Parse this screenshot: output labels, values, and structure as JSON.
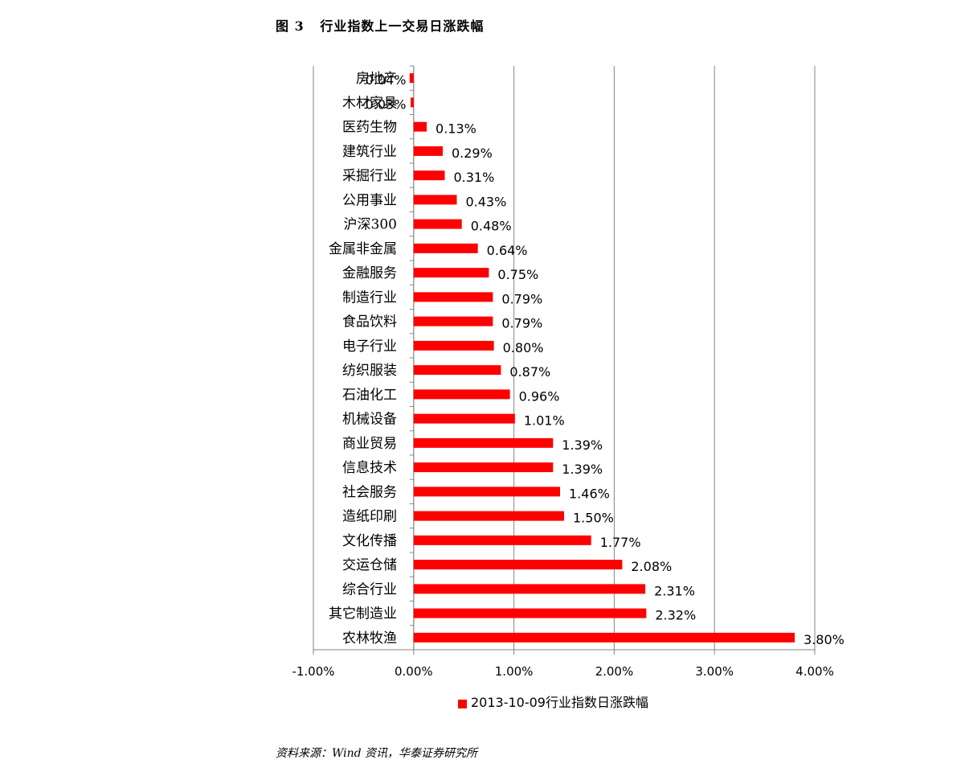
{
  "figure": {
    "title": "图 3   行业指数上一交易日涨跌幅",
    "source": "资料来源：Wind 资讯，华泰证券研究所"
  },
  "chart_data": {
    "type": "bar",
    "orientation": "horizontal",
    "categories": [
      "房地产",
      "木材家具",
      "医药生物",
      "建筑行业",
      "采掘行业",
      "公用事业",
      "沪深300",
      "金属非金属",
      "金融服务",
      "制造行业",
      "食品饮料",
      "电子行业",
      "纺织服装",
      "石油化工",
      "机械设备",
      "商业贸易",
      "信息技术",
      "社会服务",
      "造纸印刷",
      "文化传播",
      "交运仓储",
      "综合行业",
      "其它制造业",
      "农林牧渔"
    ],
    "series": [
      {
        "name": "2013-10-09行业指数日涨跌幅",
        "values": [
          -0.04,
          -0.03,
          0.13,
          0.29,
          0.31,
          0.43,
          0.48,
          0.64,
          0.75,
          0.79,
          0.79,
          0.8,
          0.87,
          0.96,
          1.01,
          1.39,
          1.39,
          1.46,
          1.5,
          1.77,
          2.08,
          2.31,
          2.32,
          3.8
        ],
        "labels": [
          "-0.04%",
          "-0.03%",
          "0.13%",
          "0.29%",
          "0.31%",
          "0.43%",
          "0.48%",
          "0.64%",
          "0.75%",
          "0.79%",
          "0.79%",
          "0.80%",
          "0.87%",
          "0.96%",
          "1.01%",
          "1.39%",
          "1.39%",
          "1.46%",
          "1.50%",
          "1.77%",
          "2.08%",
          "2.31%",
          "2.32%",
          "3.80%"
        ],
        "color": "#ff0000"
      }
    ],
    "xlim": [
      -1.0,
      4.0
    ],
    "xticks": [
      -1.0,
      0.0,
      1.0,
      2.0,
      3.0,
      4.0
    ],
    "xtick_labels": [
      "-1.00%",
      "0.00%",
      "1.00%",
      "2.00%",
      "3.00%",
      "4.00%"
    ],
    "grid": true,
    "legend_position": "bottom"
  }
}
